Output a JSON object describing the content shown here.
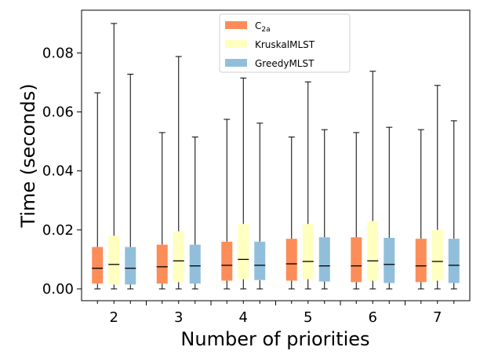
{
  "chart_data": {
    "type": "boxplot",
    "title": "",
    "xlabel": "Number of priorities",
    "ylabel": "Time (seconds)",
    "categories": [
      "2",
      "3",
      "4",
      "5",
      "6",
      "7"
    ],
    "ylim": [
      -0.004,
      0.0945
    ],
    "yticks": [
      0.0,
      0.02,
      0.04,
      0.06,
      0.08
    ],
    "ytick_labels": [
      "0.00",
      "0.02",
      "0.04",
      "0.06",
      "0.08"
    ],
    "grid": false,
    "legend_position": "top-center",
    "series": [
      {
        "name": "C2a",
        "label_main": "C",
        "label_sub": "2a",
        "color": "#fc8d59",
        "boxes": [
          {
            "whislo": 0.0,
            "q1": 0.0018,
            "med": 0.007,
            "q3": 0.0142,
            "whishi": 0.0665
          },
          {
            "whislo": 0.0,
            "q1": 0.0018,
            "med": 0.0075,
            "q3": 0.015,
            "whishi": 0.053
          },
          {
            "whislo": 0.0,
            "q1": 0.0028,
            "med": 0.008,
            "q3": 0.016,
            "whishi": 0.0575
          },
          {
            "whislo": 0.0,
            "q1": 0.0028,
            "med": 0.0085,
            "q3": 0.017,
            "whishi": 0.0515
          },
          {
            "whislo": 0.0,
            "q1": 0.0023,
            "med": 0.0078,
            "q3": 0.0175,
            "whishi": 0.053
          },
          {
            "whislo": 0.0,
            "q1": 0.0023,
            "med": 0.0078,
            "q3": 0.017,
            "whishi": 0.054
          }
        ]
      },
      {
        "name": "KruskalMLST",
        "label_main": "KruskalMLST",
        "label_sub": "",
        "color": "#ffffbf",
        "boxes": [
          {
            "whislo": 0.0,
            "q1": 0.0015,
            "med": 0.0083,
            "q3": 0.018,
            "whishi": 0.09
          },
          {
            "whislo": 0.0,
            "q1": 0.0023,
            "med": 0.0095,
            "q3": 0.0195,
            "whishi": 0.0788
          },
          {
            "whislo": 0.0,
            "q1": 0.0033,
            "med": 0.01,
            "q3": 0.022,
            "whishi": 0.0715
          },
          {
            "whislo": 0.0,
            "q1": 0.0033,
            "med": 0.0093,
            "q3": 0.022,
            "whishi": 0.0702
          },
          {
            "whislo": 0.0,
            "q1": 0.0028,
            "med": 0.0095,
            "q3": 0.023,
            "whishi": 0.0738
          },
          {
            "whislo": 0.0,
            "q1": 0.0028,
            "med": 0.0093,
            "q3": 0.02,
            "whishi": 0.069
          }
        ]
      },
      {
        "name": "GreedyMLST",
        "label_main": "GreedyMLST",
        "label_sub": "",
        "color": "#91bfdb",
        "boxes": [
          {
            "whislo": 0.0,
            "q1": 0.0015,
            "med": 0.007,
            "q3": 0.0142,
            "whishi": 0.0728
          },
          {
            "whislo": 0.0,
            "q1": 0.0018,
            "med": 0.0078,
            "q3": 0.015,
            "whishi": 0.0515
          },
          {
            "whislo": 0.0,
            "q1": 0.003,
            "med": 0.008,
            "q3": 0.016,
            "whishi": 0.0562
          },
          {
            "whislo": 0.0,
            "q1": 0.0025,
            "med": 0.0078,
            "q3": 0.0175,
            "whishi": 0.054
          },
          {
            "whislo": 0.0,
            "q1": 0.002,
            "med": 0.0083,
            "q3": 0.0173,
            "whishi": 0.0548
          },
          {
            "whislo": 0.0,
            "q1": 0.002,
            "med": 0.008,
            "q3": 0.017,
            "whishi": 0.057
          }
        ]
      }
    ]
  }
}
